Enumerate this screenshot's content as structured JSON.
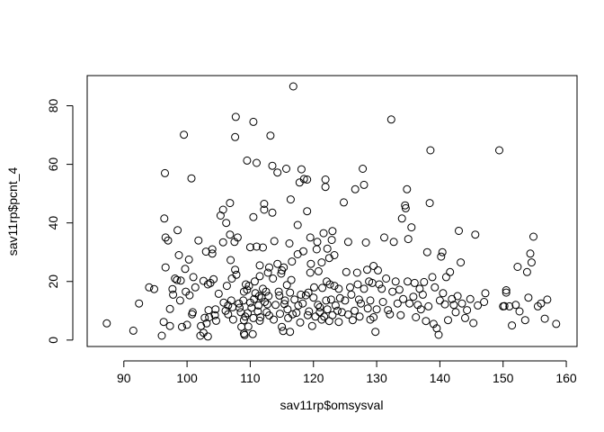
{
  "chart_data": {
    "type": "scatter",
    "title": "",
    "xlabel": "sav11rp$omsysval",
    "ylabel": "sav11rp$pcnt_4",
    "xlim": [
      84.2,
      161.7
    ],
    "ylim": [
      -2.2,
      90.3
    ],
    "x_ticks": [
      90,
      100,
      110,
      120,
      130,
      140,
      150,
      160
    ],
    "y_ticks": [
      0,
      20,
      40,
      60,
      80
    ],
    "grid": false,
    "legend": "none",
    "marker": "open-circle",
    "point_color": "#000000",
    "points": [
      [
        87.3,
        5.7
      ],
      [
        91.5,
        3.2
      ],
      [
        92.4,
        12.5
      ],
      [
        94.0,
        18.0
      ],
      [
        94.8,
        17.4
      ],
      [
        96.0,
        1.5
      ],
      [
        96.3,
        6.2
      ],
      [
        96.5,
        57.0
      ],
      [
        96.4,
        41.5
      ],
      [
        96.6,
        35.0
      ],
      [
        96.6,
        24.8
      ],
      [
        97.0,
        34.0
      ],
      [
        97.3,
        10.6
      ],
      [
        97.3,
        4.8
      ],
      [
        97.7,
        17.4
      ],
      [
        97.8,
        15.5
      ],
      [
        98.1,
        21.0
      ],
      [
        98.4,
        20.5
      ],
      [
        98.5,
        37.5
      ],
      [
        98.7,
        29.0
      ],
      [
        98.9,
        13.5
      ],
      [
        99.0,
        20.3
      ],
      [
        99.2,
        4.5
      ],
      [
        99.5,
        70.1
      ],
      [
        99.7,
        24.3
      ],
      [
        99.8,
        16.5
      ],
      [
        100.0,
        5.2
      ],
      [
        100.3,
        27.5
      ],
      [
        100.4,
        15.3
      ],
      [
        100.7,
        55.2
      ],
      [
        100.8,
        8.8
      ],
      [
        100.9,
        9.5
      ],
      [
        101.0,
        21.5
      ],
      [
        101.3,
        18.0
      ],
      [
        101.8,
        34.0
      ],
      [
        102.1,
        1.5
      ],
      [
        102.2,
        4.8
      ],
      [
        102.6,
        20.2
      ],
      [
        102.6,
        2.5
      ],
      [
        102.8,
        7.6
      ],
      [
        103.0,
        30.2
      ],
      [
        103.1,
        5.7
      ],
      [
        103.3,
        19.0
      ],
      [
        103.3,
        1.2
      ],
      [
        103.4,
        10.2
      ],
      [
        103.5,
        7.8
      ],
      [
        103.7,
        19.5
      ],
      [
        104.0,
        31.0
      ],
      [
        104.0,
        29.5
      ],
      [
        104.2,
        20.8
      ],
      [
        104.4,
        8.5
      ],
      [
        104.5,
        10.5
      ],
      [
        104.6,
        6.6
      ],
      [
        105.0,
        15.8
      ],
      [
        105.3,
        42.5
      ],
      [
        105.7,
        44.5
      ],
      [
        105.7,
        33.4
      ],
      [
        105.8,
        12.8
      ],
      [
        106.1,
        10.0
      ],
      [
        106.2,
        40.0
      ],
      [
        106.3,
        18.5
      ],
      [
        106.5,
        11.8
      ],
      [
        106.5,
        8.8
      ],
      [
        106.8,
        36.0
      ],
      [
        106.8,
        46.8
      ],
      [
        106.9,
        27.3
      ],
      [
        107.0,
        13.5
      ],
      [
        107.1,
        21.0
      ],
      [
        107.2,
        11.2
      ],
      [
        107.3,
        7.0
      ],
      [
        107.5,
        33.5
      ],
      [
        107.6,
        24.0
      ],
      [
        107.6,
        69.3
      ],
      [
        107.7,
        76.2
      ],
      [
        107.8,
        22.3
      ],
      [
        108.0,
        35.0
      ],
      [
        108.2,
        12.5
      ],
      [
        108.3,
        11.0
      ],
      [
        108.5,
        9.5
      ],
      [
        108.6,
        4.5
      ],
      [
        108.9,
        13.5
      ],
      [
        109.0,
        6.8
      ],
      [
        109.0,
        2.2
      ],
      [
        109.0,
        16.5
      ],
      [
        109.1,
        1.7
      ],
      [
        109.2,
        8.0
      ],
      [
        109.3,
        19.0
      ],
      [
        109.5,
        17.2
      ],
      [
        109.5,
        61.3
      ],
      [
        109.6,
        9.2
      ],
      [
        109.7,
        4.6
      ],
      [
        109.8,
        18.5
      ],
      [
        110.0,
        12.8
      ],
      [
        110.0,
        31.7
      ],
      [
        110.2,
        11.0
      ],
      [
        110.4,
        2.0
      ],
      [
        110.5,
        42.0
      ],
      [
        110.5,
        74.5
      ],
      [
        110.5,
        7.5
      ],
      [
        110.6,
        14.0
      ],
      [
        110.7,
        20.0
      ],
      [
        110.8,
        16.0
      ],
      [
        111.0,
        60.5
      ],
      [
        111.0,
        31.9
      ],
      [
        111.2,
        9.8
      ],
      [
        111.3,
        11.8
      ],
      [
        111.4,
        15.0
      ],
      [
        111.5,
        21.8
      ],
      [
        111.5,
        25.5
      ],
      [
        111.5,
        6.6
      ],
      [
        111.6,
        7.8
      ],
      [
        111.8,
        14.5
      ],
      [
        112.0,
        31.6
      ],
      [
        112.0,
        17.5
      ],
      [
        112.2,
        44.5
      ],
      [
        112.2,
        46.5
      ],
      [
        112.3,
        13.0
      ],
      [
        112.5,
        16.5
      ],
      [
        112.6,
        9.5
      ],
      [
        112.7,
        12.2
      ],
      [
        112.8,
        23.0
      ],
      [
        112.9,
        15.0
      ],
      [
        113.0,
        8.4
      ],
      [
        113.0,
        24.8
      ],
      [
        113.2,
        69.8
      ],
      [
        113.5,
        59.5
      ],
      [
        113.5,
        43.5
      ],
      [
        113.6,
        21.0
      ],
      [
        113.7,
        7.0
      ],
      [
        113.8,
        33.8
      ],
      [
        114.0,
        12.0
      ],
      [
        114.3,
        57.2
      ],
      [
        114.3,
        26.0
      ],
      [
        114.5,
        16.5
      ],
      [
        114.6,
        15.2
      ],
      [
        114.7,
        9.0
      ],
      [
        114.9,
        22.7
      ],
      [
        115.0,
        23.8
      ],
      [
        115.0,
        4.5
      ],
      [
        115.2,
        3.1
      ],
      [
        115.3,
        24.8
      ],
      [
        115.4,
        12.3
      ],
      [
        115.5,
        13.5
      ],
      [
        115.7,
        58.5
      ],
      [
        115.8,
        18.8
      ],
      [
        115.9,
        10.5
      ],
      [
        116.0,
        7.5
      ],
      [
        116.2,
        33.0
      ],
      [
        116.3,
        2.8
      ],
      [
        116.3,
        16.2
      ],
      [
        116.4,
        48.0
      ],
      [
        116.5,
        20.5
      ],
      [
        116.6,
        26.8
      ],
      [
        116.7,
        8.8
      ],
      [
        116.8,
        86.6
      ],
      [
        117.0,
        13.8
      ],
      [
        117.3,
        9.3
      ],
      [
        117.5,
        29.3
      ],
      [
        117.5,
        39.3
      ],
      [
        117.6,
        11.8
      ],
      [
        117.8,
        53.8
      ],
      [
        117.9,
        6.0
      ],
      [
        118.0,
        15.5
      ],
      [
        118.1,
        58.3
      ],
      [
        118.3,
        12.5
      ],
      [
        118.4,
        30.3
      ],
      [
        118.5,
        55.0
      ],
      [
        118.8,
        15.3
      ],
      [
        119.0,
        54.8
      ],
      [
        119.0,
        44.0
      ],
      [
        119.1,
        8.5
      ],
      [
        119.2,
        16.2
      ],
      [
        119.3,
        9.8
      ],
      [
        119.5,
        23.0
      ],
      [
        119.5,
        35.0
      ],
      [
        119.6,
        26.0
      ],
      [
        119.8,
        4.8
      ],
      [
        120.0,
        14.5
      ],
      [
        120.1,
        18.0
      ],
      [
        120.3,
        8.0
      ],
      [
        120.5,
        31.0
      ],
      [
        120.6,
        33.5
      ],
      [
        120.7,
        12.0
      ],
      [
        120.8,
        23.5
      ],
      [
        121.0,
        9.5
      ],
      [
        121.0,
        11.2
      ],
      [
        121.3,
        7.0
      ],
      [
        121.3,
        26.5
      ],
      [
        121.4,
        17.8
      ],
      [
        121.6,
        36.5
      ],
      [
        121.7,
        8.0
      ],
      [
        121.9,
        54.8
      ],
      [
        121.9,
        52.3
      ],
      [
        122.0,
        13.5
      ],
      [
        122.1,
        20.0
      ],
      [
        122.2,
        10.5
      ],
      [
        122.2,
        31.2
      ],
      [
        122.5,
        28.0
      ],
      [
        122.5,
        6.5
      ],
      [
        122.6,
        19.0
      ],
      [
        122.8,
        13.8
      ],
      [
        122.9,
        34.2
      ],
      [
        123.0,
        37.2
      ],
      [
        123.0,
        8.5
      ],
      [
        123.3,
        29.0
      ],
      [
        123.3,
        18.5
      ],
      [
        123.5,
        11.8
      ],
      [
        123.8,
        10.0
      ],
      [
        124.0,
        17.5
      ],
      [
        124.0,
        6.2
      ],
      [
        124.2,
        14.3
      ],
      [
        124.5,
        9.5
      ],
      [
        124.8,
        47.0
      ],
      [
        125.0,
        13.5
      ],
      [
        125.2,
        23.2
      ],
      [
        125.5,
        8.7
      ],
      [
        125.5,
        33.5
      ],
      [
        125.8,
        18.0
      ],
      [
        126.0,
        15.5
      ],
      [
        126.2,
        6.8
      ],
      [
        126.5,
        10.0
      ],
      [
        126.6,
        51.5
      ],
      [
        126.9,
        23.0
      ],
      [
        127.0,
        19.0
      ],
      [
        127.2,
        13.8
      ],
      [
        127.3,
        8.0
      ],
      [
        127.5,
        12.5
      ],
      [
        127.8,
        58.5
      ],
      [
        128.0,
        53.0
      ],
      [
        128.0,
        17.5
      ],
      [
        128.3,
        33.3
      ],
      [
        128.5,
        24.0
      ],
      [
        128.6,
        10.8
      ],
      [
        128.8,
        20.0
      ],
      [
        129.0,
        7.0
      ],
      [
        129.0,
        13.5
      ],
      [
        129.3,
        19.5
      ],
      [
        129.5,
        25.3
      ],
      [
        129.5,
        7.8
      ],
      [
        129.8,
        2.8
      ],
      [
        130.0,
        10.5
      ],
      [
        130.2,
        23.8
      ],
      [
        130.4,
        19.0
      ],
      [
        130.8,
        17.5
      ],
      [
        131.0,
        13.0
      ],
      [
        131.2,
        35.0
      ],
      [
        131.5,
        21.0
      ],
      [
        131.8,
        10.2
      ],
      [
        132.1,
        8.8
      ],
      [
        132.3,
        75.3
      ],
      [
        132.5,
        16.5
      ],
      [
        132.7,
        33.5
      ],
      [
        133.0,
        20.0
      ],
      [
        133.3,
        12.5
      ],
      [
        133.6,
        17.2
      ],
      [
        133.8,
        8.5
      ],
      [
        134.0,
        41.5
      ],
      [
        134.2,
        14.0
      ],
      [
        134.5,
        46.0
      ],
      [
        134.6,
        45.0
      ],
      [
        134.8,
        51.5
      ],
      [
        134.9,
        20.0
      ],
      [
        135.0,
        34.5
      ],
      [
        135.2,
        12.5
      ],
      [
        135.5,
        38.5
      ],
      [
        135.8,
        14.8
      ],
      [
        136.0,
        19.5
      ],
      [
        136.2,
        7.8
      ],
      [
        136.5,
        12.0
      ],
      [
        136.8,
        17.5
      ],
      [
        137.0,
        10.5
      ],
      [
        137.3,
        15.5
      ],
      [
        137.5,
        19.8
      ],
      [
        137.8,
        6.5
      ],
      [
        138.0,
        30.0
      ],
      [
        138.2,
        11.5
      ],
      [
        138.4,
        46.8
      ],
      [
        138.5,
        64.8
      ],
      [
        138.8,
        21.5
      ],
      [
        139.0,
        5.5
      ],
      [
        139.2,
        18.0
      ],
      [
        139.5,
        4.0
      ],
      [
        139.8,
        1.8
      ],
      [
        140.0,
        13.5
      ],
      [
        140.2,
        28.5
      ],
      [
        140.4,
        30.0
      ],
      [
        140.5,
        16.0
      ],
      [
        140.8,
        12.2
      ],
      [
        141.0,
        21.5
      ],
      [
        141.3,
        6.8
      ],
      [
        141.6,
        23.2
      ],
      [
        141.9,
        14.0
      ],
      [
        142.2,
        12.0
      ],
      [
        142.5,
        9.5
      ],
      [
        142.8,
        15.0
      ],
      [
        143.0,
        37.3
      ],
      [
        143.3,
        26.5
      ],
      [
        143.5,
        12.5
      ],
      [
        144.0,
        7.5
      ],
      [
        144.3,
        10.2
      ],
      [
        144.8,
        14.0
      ],
      [
        145.3,
        5.8
      ],
      [
        145.6,
        36.0
      ],
      [
        146.0,
        11.8
      ],
      [
        147.0,
        13.0
      ],
      [
        147.2,
        16.0
      ],
      [
        149.4,
        64.8
      ],
      [
        150.0,
        11.5
      ],
      [
        150.2,
        11.6
      ],
      [
        150.5,
        17.0
      ],
      [
        150.5,
        16.2
      ],
      [
        151.0,
        11.5
      ],
      [
        151.4,
        5.0
      ],
      [
        152.0,
        12.0
      ],
      [
        152.3,
        25.0
      ],
      [
        152.6,
        9.8
      ],
      [
        153.5,
        6.8
      ],
      [
        153.8,
        23.2
      ],
      [
        154.0,
        14.5
      ],
      [
        154.3,
        29.5
      ],
      [
        154.5,
        26.5
      ],
      [
        154.8,
        35.3
      ],
      [
        155.5,
        11.5
      ],
      [
        156.0,
        12.5
      ],
      [
        156.6,
        7.3
      ],
      [
        157.0,
        13.8
      ],
      [
        158.4,
        5.5
      ]
    ]
  }
}
